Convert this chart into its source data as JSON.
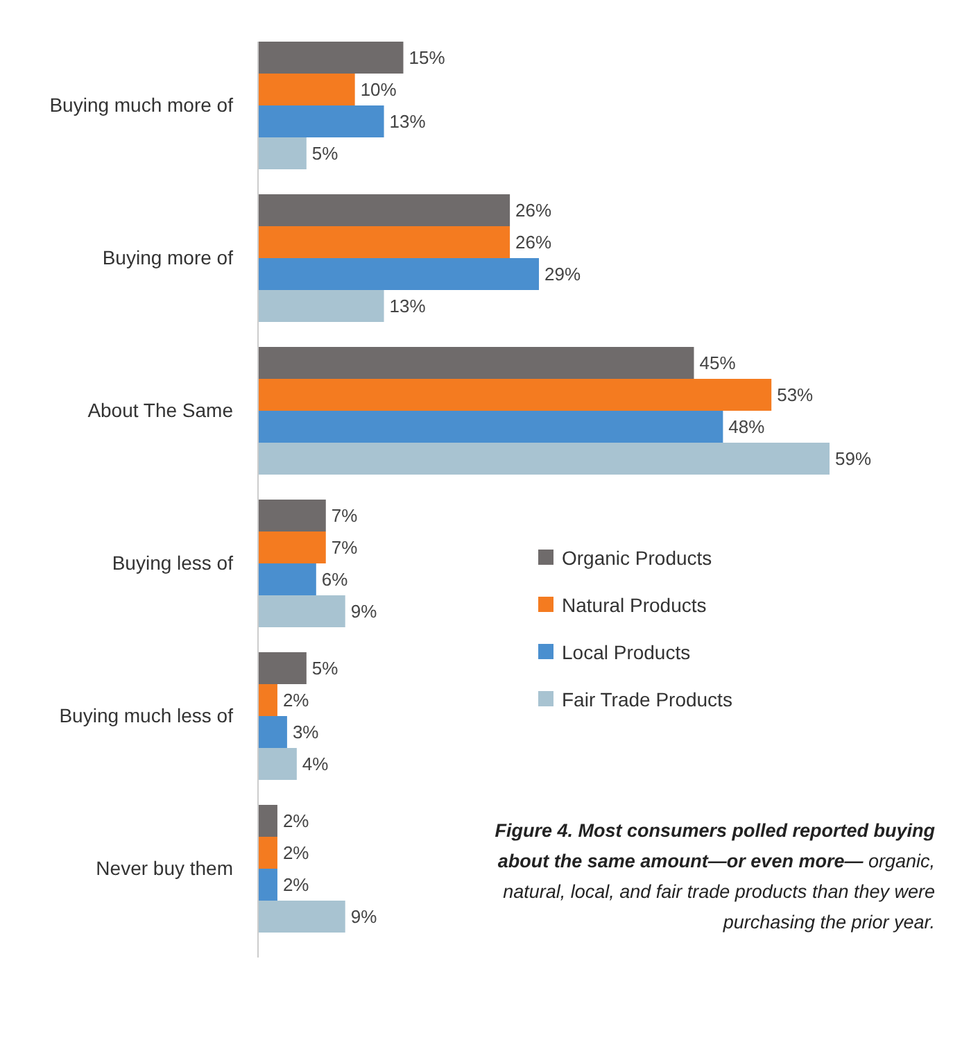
{
  "chart_data": {
    "type": "bar",
    "orientation": "horizontal",
    "categories": [
      "Buying much more of",
      "Buying more of",
      "About The Same",
      "Buying less of",
      "Buying much less of",
      "Never buy them"
    ],
    "series": [
      {
        "name": "Organic Products",
        "color": "#6f6b6b",
        "values": [
          15,
          26,
          45,
          7,
          5,
          2
        ],
        "value_labels": [
          "15%",
          "26%",
          "45%",
          "7%",
          "5%",
          "2%"
        ]
      },
      {
        "name": "Natural Products",
        "color": "#f47b20",
        "values": [
          10,
          26,
          53,
          7,
          2,
          2
        ],
        "value_labels": [
          "10%",
          "26%",
          "53%",
          "7%",
          "2%",
          "2%"
        ]
      },
      {
        "name": "Local Products",
        "color": "#4a8fcf",
        "values": [
          13,
          29,
          48,
          6,
          3,
          2
        ],
        "value_labels": [
          "13%",
          "29%",
          "48%",
          "6%",
          "3%",
          "2%"
        ]
      },
      {
        "name": "Fair Trade Products",
        "color": "#a8c3d1",
        "values": [
          5,
          13,
          59,
          9,
          4,
          9
        ],
        "value_labels": [
          "5%",
          "13%",
          "59%",
          "9%",
          "4%",
          "9%"
        ]
      }
    ],
    "tick_labels": "y",
    "legend": "right",
    "annotations": [
      "Figure 4. Most consumers polled reported buying about the same amount—or even more—",
      "organic, natural, local, and fair trade products than they were purchasing the prior year."
    ]
  }
}
